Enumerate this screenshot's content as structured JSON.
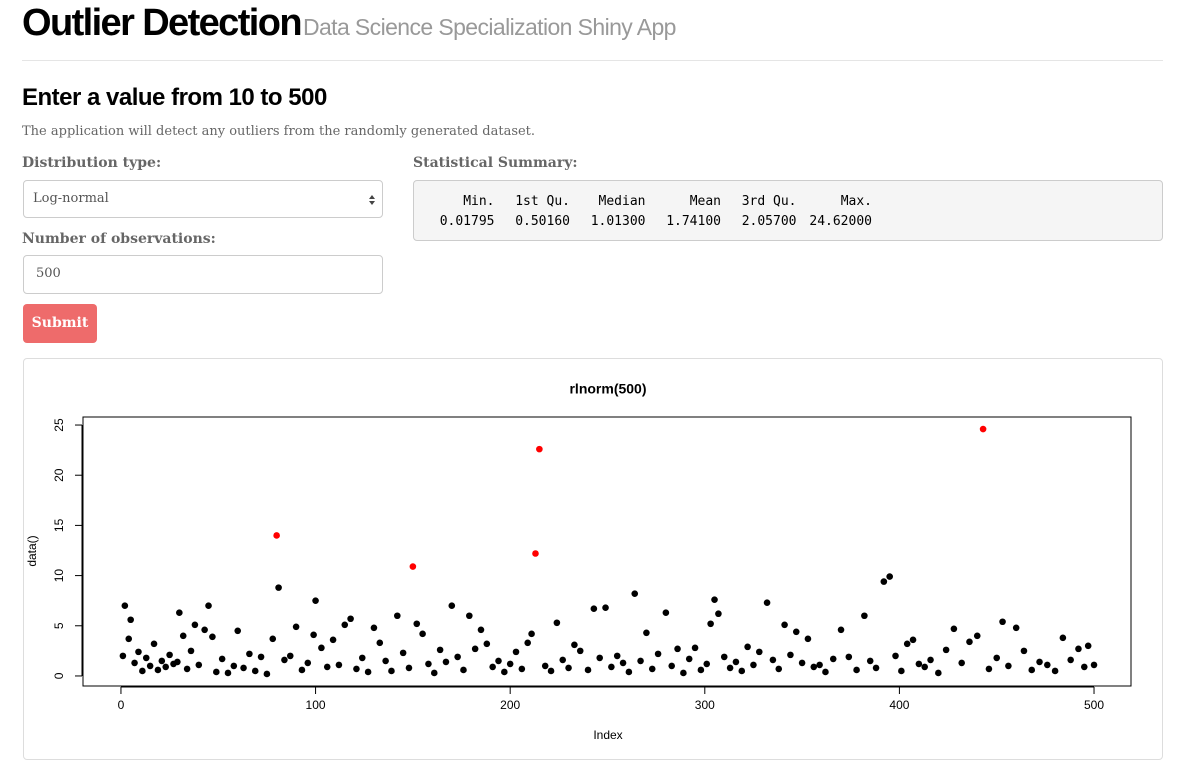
{
  "header": {
    "title": "Outlier Detection",
    "subtitle": "Data Science Specialization Shiny App"
  },
  "heading": "Enter a value from 10 to 500",
  "description": "The application will detect any outliers from the randomly generated dataset.",
  "form": {
    "distribution_label": "Distribution type:",
    "distribution_value": "Log-normal",
    "observations_label": "Number of observations:",
    "observations_value": "500",
    "submit": "Submit"
  },
  "summary": {
    "label": "Statistical Summary:",
    "headers": [
      "Min.",
      "1st Qu.",
      "Median",
      "Mean",
      "3rd Qu.",
      "Max."
    ],
    "values": [
      "0.01795",
      "0.50160",
      "1.01300",
      "1.74100",
      "2.05700",
      "24.62000"
    ]
  },
  "chart_data": {
    "type": "scatter",
    "title": "rlnorm(500)",
    "xlabel": "Index",
    "ylabel": "data()",
    "xlim": [
      -19.5,
      519
    ],
    "ylim": [
      -1,
      25.8
    ],
    "xticks": [
      0,
      100,
      200,
      300,
      400,
      500
    ],
    "yticks": [
      0,
      5,
      10,
      15,
      20,
      25
    ],
    "series": [
      {
        "color": "#000000",
        "x": [
          1,
          2,
          4,
          5,
          7,
          9,
          11,
          13,
          15,
          17,
          19,
          21,
          23,
          25,
          27,
          29,
          30,
          32,
          34,
          36,
          38,
          40,
          43,
          45,
          47,
          49,
          52,
          55,
          58,
          60,
          63,
          66,
          69,
          72,
          75,
          78,
          81,
          84,
          87,
          90,
          93,
          96,
          99,
          100,
          103,
          106,
          109,
          112,
          115,
          118,
          121,
          124,
          127,
          130,
          133,
          136,
          139,
          142,
          145,
          148,
          152,
          155,
          158,
          161,
          164,
          167,
          170,
          173,
          176,
          179,
          182,
          185,
          188,
          191,
          194,
          197,
          200,
          203,
          206,
          209,
          211,
          218,
          221,
          224,
          227,
          230,
          233,
          236,
          240,
          243,
          246,
          249,
          252,
          255,
          258,
          261,
          264,
          267,
          270,
          273,
          276,
          280,
          283,
          286,
          289,
          292,
          295,
          298,
          301,
          303,
          305,
          307,
          310,
          313,
          316,
          319,
          322,
          325,
          328,
          332,
          335,
          338,
          341,
          344,
          347,
          350,
          353,
          356,
          359,
          362,
          366,
          370,
          374,
          378,
          382,
          385,
          388,
          392,
          395,
          398,
          401,
          404,
          407,
          410,
          413,
          416,
          420,
          424,
          428,
          432,
          436,
          440,
          446,
          450,
          453,
          456,
          460,
          464,
          468,
          472,
          476,
          480,
          484,
          488,
          492,
          495,
          497,
          500
        ],
        "values": [
          2.0,
          7.0,
          3.7,
          5.6,
          1.3,
          2.4,
          0.5,
          1.8,
          1.0,
          3.2,
          0.6,
          1.5,
          0.9,
          2.1,
          1.2,
          1.4,
          6.3,
          4.0,
          0.7,
          2.5,
          5.1,
          1.1,
          4.6,
          7.0,
          3.9,
          0.4,
          1.7,
          0.3,
          1.0,
          4.5,
          0.8,
          2.2,
          0.5,
          1.9,
          0.2,
          3.7,
          8.8,
          1.6,
          2.0,
          4.9,
          0.6,
          1.3,
          4.1,
          7.5,
          2.8,
          0.9,
          3.6,
          1.1,
          5.1,
          5.7,
          0.7,
          1.8,
          0.4,
          4.8,
          3.3,
          1.5,
          0.5,
          6.0,
          2.3,
          0.8,
          5.2,
          4.2,
          1.2,
          0.3,
          2.6,
          1.4,
          7.0,
          1.9,
          0.6,
          6.0,
          2.7,
          4.6,
          3.2,
          0.9,
          1.5,
          0.4,
          1.2,
          2.4,
          0.7,
          3.3,
          4.2,
          1.0,
          0.5,
          5.3,
          1.6,
          0.8,
          3.1,
          2.5,
          0.6,
          6.7,
          1.8,
          6.8,
          0.9,
          2.0,
          1.3,
          0.4,
          8.2,
          1.5,
          4.3,
          0.7,
          2.2,
          6.3,
          1.0,
          2.7,
          0.3,
          1.7,
          2.8,
          0.6,
          1.2,
          5.2,
          7.6,
          6.2,
          1.9,
          0.8,
          1.4,
          0.5,
          2.9,
          1.1,
          2.4,
          7.3,
          1.6,
          0.7,
          5.1,
          2.1,
          4.4,
          1.3,
          3.7,
          0.9,
          1.1,
          0.4,
          1.7,
          4.6,
          1.9,
          0.6,
          6.0,
          1.5,
          0.8,
          9.4,
          9.9,
          2.0,
          0.5,
          3.2,
          3.6,
          1.2,
          0.9,
          1.6,
          0.3,
          2.6,
          4.7,
          1.3,
          3.4,
          4.0,
          0.7,
          1.8,
          5.4,
          1.0,
          4.8,
          2.5,
          0.6,
          1.4,
          1.1,
          0.5,
          3.8,
          1.6,
          2.7,
          0.9,
          3.0,
          1.1
        ]
      },
      {
        "color": "#ff0000",
        "x": [
          80,
          150,
          213,
          215,
          443
        ],
        "values": [
          14.0,
          10.9,
          12.2,
          22.6,
          24.6
        ]
      }
    ]
  }
}
